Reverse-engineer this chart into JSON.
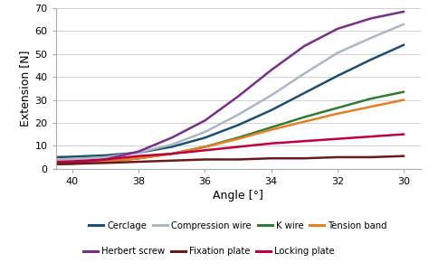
{
  "title": "",
  "xlabel": "Angle [°]",
  "ylabel": "Extension [N]",
  "xlim": [
    40.5,
    29.5
  ],
  "ylim": [
    0,
    70
  ],
  "xticks": [
    40,
    38,
    36,
    34,
    32,
    30
  ],
  "yticks": [
    0,
    10,
    20,
    30,
    40,
    50,
    60,
    70
  ],
  "angle": [
    40.5,
    40.0,
    39.0,
    38.0,
    37.0,
    36.0,
    35.0,
    34.0,
    33.0,
    32.0,
    31.0,
    30.0
  ],
  "cerclage": [
    5.0,
    5.2,
    5.8,
    7.0,
    9.5,
    13.5,
    19.0,
    25.5,
    33.0,
    40.5,
    47.5,
    54.0
  ],
  "compression_wire": [
    4.0,
    4.2,
    5.0,
    7.0,
    10.5,
    16.0,
    23.5,
    32.0,
    41.5,
    50.5,
    57.0,
    63.0
  ],
  "k_wire": [
    2.0,
    2.2,
    3.0,
    4.5,
    6.5,
    9.5,
    13.5,
    18.0,
    22.5,
    26.5,
    30.5,
    33.5
  ],
  "tension_band": [
    2.0,
    2.2,
    3.0,
    4.5,
    6.5,
    9.5,
    13.0,
    17.0,
    20.5,
    24.0,
    27.0,
    30.0
  ],
  "herbert_screw": [
    2.0,
    2.5,
    4.0,
    7.5,
    13.5,
    21.0,
    31.5,
    43.0,
    53.5,
    61.0,
    65.5,
    68.5
  ],
  "fixation_plate": [
    2.0,
    2.1,
    2.5,
    3.0,
    3.5,
    4.0,
    4.0,
    4.5,
    4.5,
    5.0,
    5.0,
    5.5
  ],
  "locking_plate": [
    3.0,
    3.2,
    4.0,
    5.5,
    6.5,
    8.0,
    9.5,
    11.0,
    12.0,
    13.0,
    14.0,
    15.0
  ],
  "colors": {
    "cerclage": "#1b4f72",
    "compression_wire": "#aab7c4",
    "k_wire": "#2e7d32",
    "tension_band": "#e67e22",
    "herbert_screw": "#7b2d8b",
    "fixation_plate": "#6b1a1a",
    "locking_plate": "#c0003c"
  },
  "legend_row1": [
    [
      "Cerclage",
      "cerclage"
    ],
    [
      "Compression wire",
      "compression_wire"
    ],
    [
      "K wire",
      "k_wire"
    ],
    [
      "Tension band",
      "tension_band"
    ]
  ],
  "legend_row2": [
    [
      "Herbert screw",
      "herbert_screw"
    ],
    [
      "Fixation plate",
      "fixation_plate"
    ],
    [
      "Locking plate",
      "locking_plate"
    ]
  ],
  "series_order": [
    "cerclage",
    "compression_wire",
    "k_wire",
    "tension_band",
    "herbert_screw",
    "fixation_plate",
    "locking_plate"
  ]
}
